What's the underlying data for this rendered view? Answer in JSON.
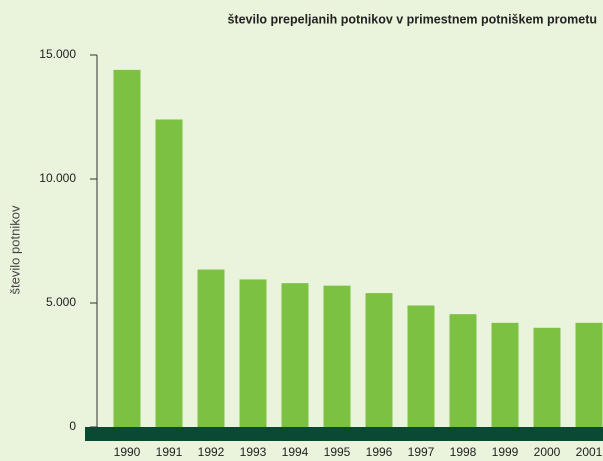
{
  "chart_data": {
    "type": "bar",
    "title": "število prepeljanih potnikov v primestnem potniškem prometu",
    "y_label": "število potnikov",
    "categories": [
      "1990",
      "1991",
      "1992",
      "1993",
      "1994",
      "1995",
      "1996",
      "1997",
      "1998",
      "1999",
      "2000",
      "2001"
    ],
    "values": [
      14400,
      12400,
      6350,
      5950,
      5800,
      5700,
      5400,
      4900,
      4550,
      4200,
      4000,
      4200
    ],
    "color": "#7dc142",
    "ylim": [
      0,
      15000
    ],
    "yticks": [
      0,
      {
        "value": 5000,
        "label": "5.000"
      },
      {
        "value": 10000,
        "label": "10.000"
      },
      {
        "value": 15000,
        "label": "15.000"
      }
    ]
  }
}
